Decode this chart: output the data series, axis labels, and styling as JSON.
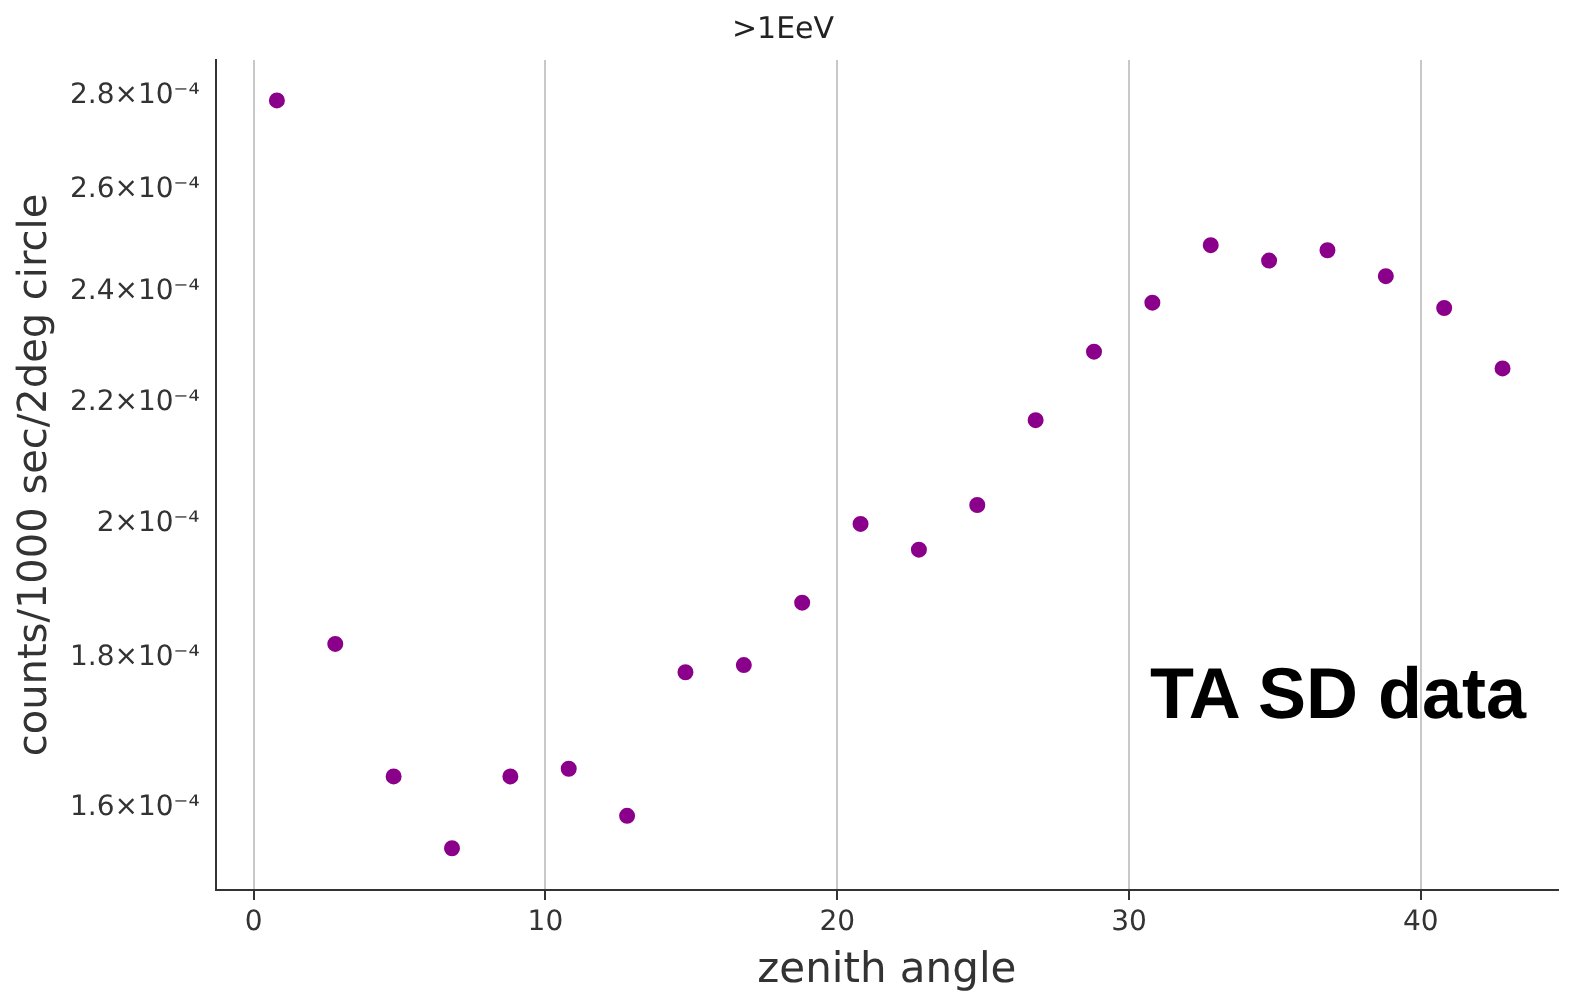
{
  "chart_data": {
    "type": "scatter",
    "title": ">1EeV",
    "xlabel": "zenith angle",
    "ylabel": "counts/1000 sec/2deg circle",
    "x": [
      0.8,
      2.8,
      4.8,
      6.8,
      8.8,
      10.8,
      12.8,
      14.8,
      16.8,
      18.8,
      20.8,
      22.8,
      24.8,
      26.8,
      28.8,
      30.8,
      32.8,
      34.8,
      36.8,
      38.8,
      40.8,
      42.8
    ],
    "series": [
      {
        "color": "#8b008b",
        "values": [
          0.000279,
          0.000182,
          0.000164,
          0.000155,
          0.000164,
          0.000165,
          0.000159,
          0.000178,
          0.000179,
          0.000188,
          0.0002,
          0.000196,
          0.000203,
          0.000217,
          0.000229,
          0.000238,
          0.000249,
          0.000246,
          0.000248,
          0.000243,
          0.000237,
          0.000226
        ]
      }
    ],
    "xlim": [
      -1.3,
      44.7
    ],
    "xticks": [
      0,
      10,
      20,
      30,
      40
    ],
    "ylim": [
      0.00015,
      0.000288
    ],
    "yticks": [
      {
        "value": 0.00016,
        "label": "1.6×10⁻⁴"
      },
      {
        "value": 0.00018,
        "label": "1.8×10⁻⁴"
      },
      {
        "value": 0.0002,
        "label": "2×10⁻⁴"
      },
      {
        "value": 0.00022,
        "label": "2.2×10⁻⁴"
      },
      {
        "value": 0.00024,
        "label": "2.4×10⁻⁴"
      },
      {
        "value": 0.00026,
        "label": "2.6×10⁻⁴"
      },
      {
        "value": 0.00028,
        "label": "2.8×10⁻⁴"
      }
    ],
    "log": "y",
    "grid": "x",
    "marker": "circle",
    "legend": false,
    "annotations": [
      "TA SD data"
    ]
  }
}
